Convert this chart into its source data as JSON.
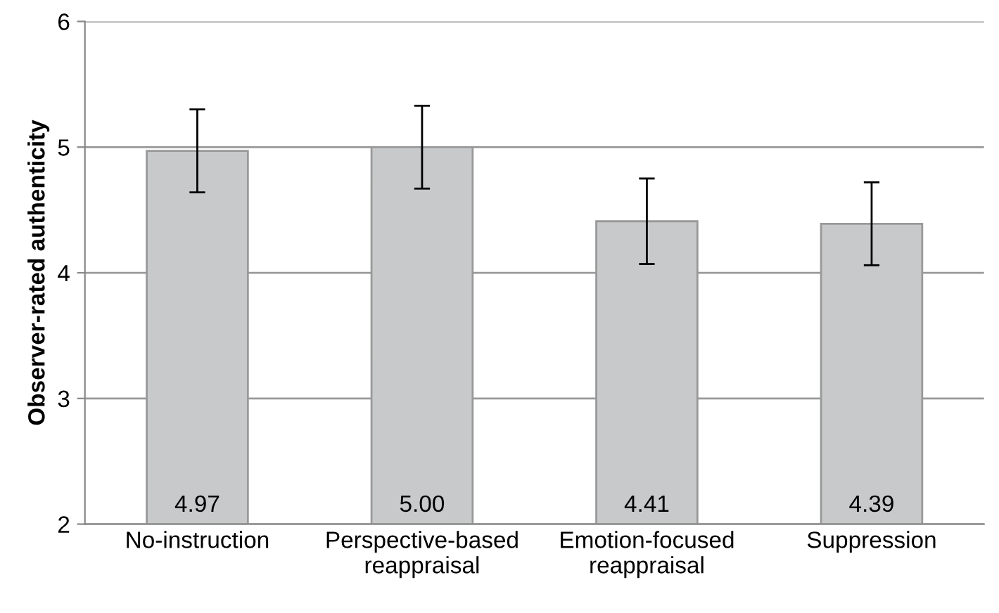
{
  "chart_data": {
    "type": "bar",
    "ylabel": "Observer-rated authenticity",
    "categories": [
      "No-instruction",
      "Perspective-based\nreappraisal",
      "Emotion-focused\nreappraisal",
      "Suppression"
    ],
    "values": [
      4.97,
      5.0,
      4.41,
      4.39
    ],
    "value_labels": [
      "4.97",
      "5.00",
      "4.41",
      "4.39"
    ],
    "errors": [
      0.33,
      0.33,
      0.34,
      0.33
    ],
    "color": "#c8c9cb",
    "ylim": [
      2,
      6
    ],
    "yticks": [
      2,
      3,
      4,
      5,
      6
    ],
    "grid": "y",
    "legend": false
  }
}
